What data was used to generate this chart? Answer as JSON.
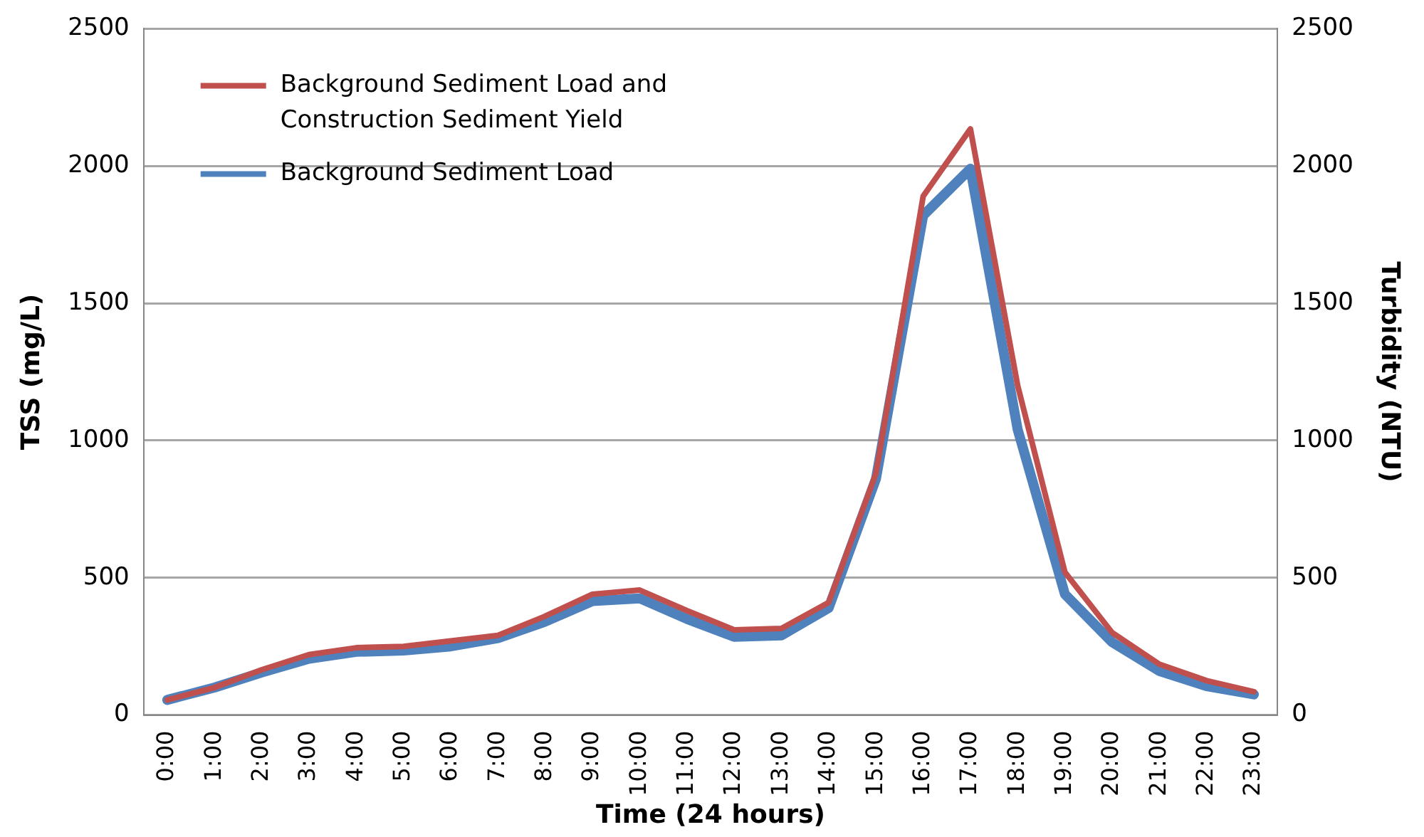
{
  "chart_data": {
    "type": "line",
    "xlabel": "Time (24 hours)",
    "ylabel": "TSS (mg/L)",
    "y2label": "Turbidity (NTU)",
    "categories": [
      "0:00",
      "1:00",
      "2:00",
      "3:00",
      "4:00",
      "5:00",
      "6:00",
      "7:00",
      "8:00",
      "9:00",
      "10:00",
      "11:00",
      "12:00",
      "13:00",
      "14:00",
      "15:00",
      "16:00",
      "17:00",
      "18:00",
      "19:00",
      "20:00",
      "21:00",
      "22:00",
      "23:00"
    ],
    "series": [
      {
        "name": "Background Sediment Load and Construction Sediment Yield",
        "color": "#c0504d",
        "values": [
          55,
          100,
          165,
          220,
          245,
          250,
          270,
          290,
          360,
          440,
          455,
          380,
          310,
          315,
          410,
          880,
          1890,
          2135,
          1200,
          520,
          300,
          185,
          125,
          85
        ]
      },
      {
        "name": "Background Sediment Load",
        "color": "#4f81bd",
        "values": [
          55,
          100,
          155,
          205,
          230,
          235,
          250,
          280,
          340,
          415,
          425,
          350,
          285,
          290,
          390,
          860,
          1820,
          1990,
          1040,
          440,
          265,
          160,
          105,
          75
        ]
      }
    ],
    "ylim": [
      0,
      2500
    ],
    "yticks": [
      0,
      500,
      1000,
      1500,
      2000,
      2500
    ],
    "y2lim": [
      0,
      2500
    ],
    "y2ticks": [
      0,
      500,
      1000,
      1500,
      2000,
      2500
    ],
    "grid": "y",
    "legend": "top left",
    "marker": "none",
    "line_style": "solid"
  }
}
